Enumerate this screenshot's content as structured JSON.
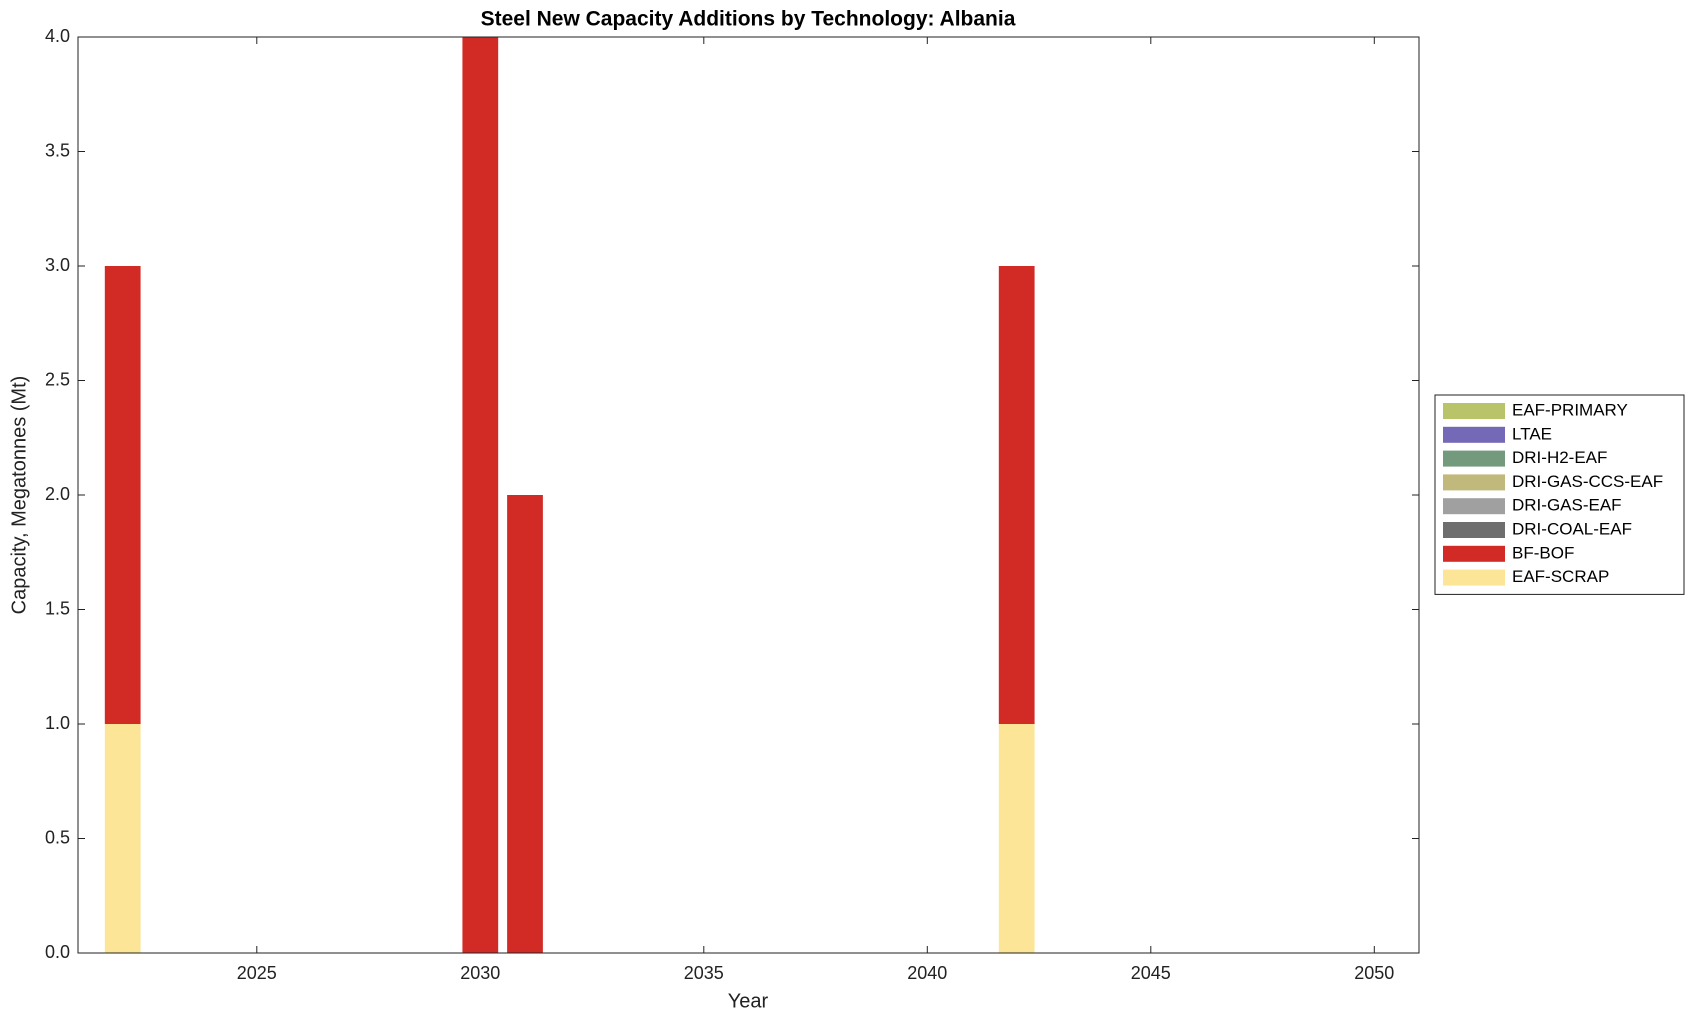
{
  "chart_data": {
    "type": "stacked_bar",
    "title": "Steel New Capacity Additions by Technology: Albania",
    "x_label": "Year",
    "y_label": "Capacity, Megatonnes (Mt)",
    "x": [
      2022,
      2030,
      2031,
      2042
    ],
    "series": [
      {
        "name": "EAF-PRIMARY",
        "color": "#b9c46a",
        "values": [
          0,
          0,
          0,
          0
        ]
      },
      {
        "name": "LTAE",
        "color": "#7469b6",
        "values": [
          0,
          0,
          0,
          0
        ]
      },
      {
        "name": "DRI-H2-EAF",
        "color": "#739a7c",
        "values": [
          0,
          0,
          0,
          0
        ]
      },
      {
        "name": "DRI-GAS-CCS-EAF",
        "color": "#c0b97b",
        "values": [
          0,
          0,
          0,
          0
        ]
      },
      {
        "name": "DRI-GAS-EAF",
        "color": "#a0a0a0",
        "values": [
          0,
          0,
          0,
          0
        ]
      },
      {
        "name": "DRI-COAL-EAF",
        "color": "#6e6e6e",
        "values": [
          0,
          0,
          0,
          0
        ]
      },
      {
        "name": "BF-BOF",
        "color": "#d22b26",
        "values": [
          2,
          4,
          2,
          2
        ]
      },
      {
        "name": "EAF-SCRAP",
        "color": "#fde597",
        "values": [
          1,
          0,
          0,
          1
        ]
      }
    ],
    "xlim": [
      2021,
      2051
    ],
    "xticks": [
      2025,
      2030,
      2035,
      2040,
      2045,
      2050
    ],
    "ylim": [
      0,
      4
    ],
    "yticks": [
      {
        "value": 0,
        "label": "0.0"
      },
      0.5,
      {
        "value": 1,
        "label": "1.0"
      },
      1.5,
      {
        "value": 2,
        "label": "2.0"
      },
      2.5,
      {
        "value": 3,
        "label": "3.0"
      },
      3.5,
      {
        "value": 4,
        "label": "4.0"
      }
    ],
    "legend": "right"
  }
}
